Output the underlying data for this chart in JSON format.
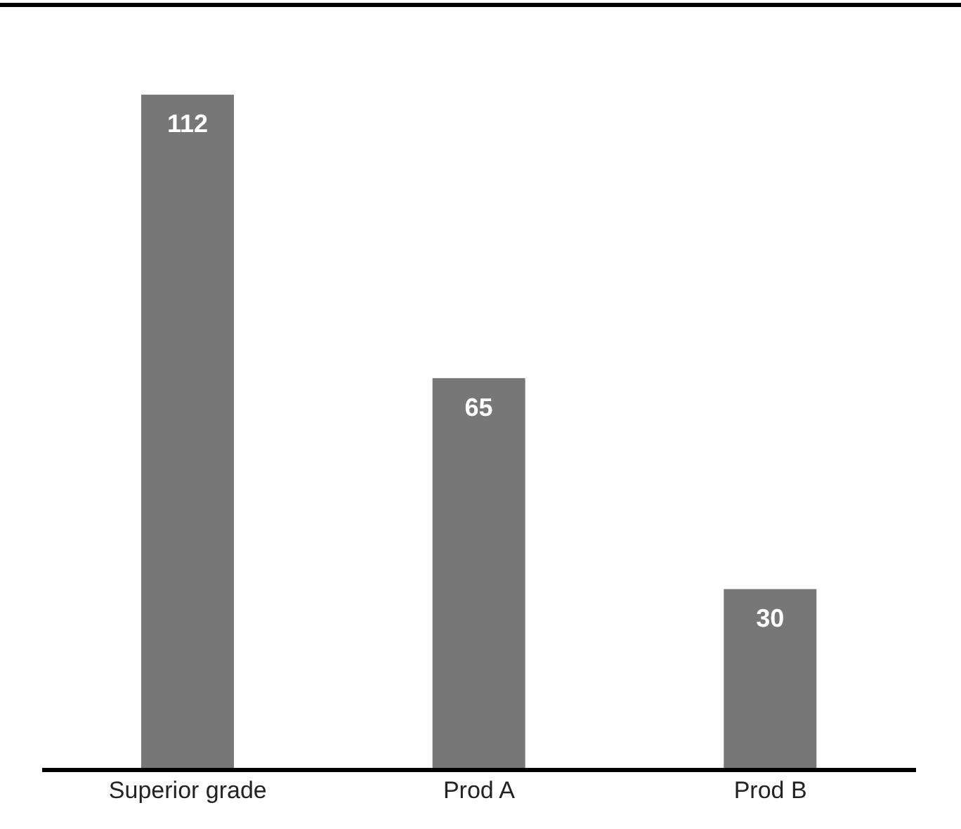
{
  "chart_data": {
    "type": "bar",
    "categories": [
      "Superior grade",
      "Prod A",
      "Prod B"
    ],
    "values": [
      112,
      65,
      30
    ],
    "color": "#777777",
    "ylim": [
      0,
      127
    ],
    "data_labels": true,
    "grid": false,
    "legend": false
  }
}
